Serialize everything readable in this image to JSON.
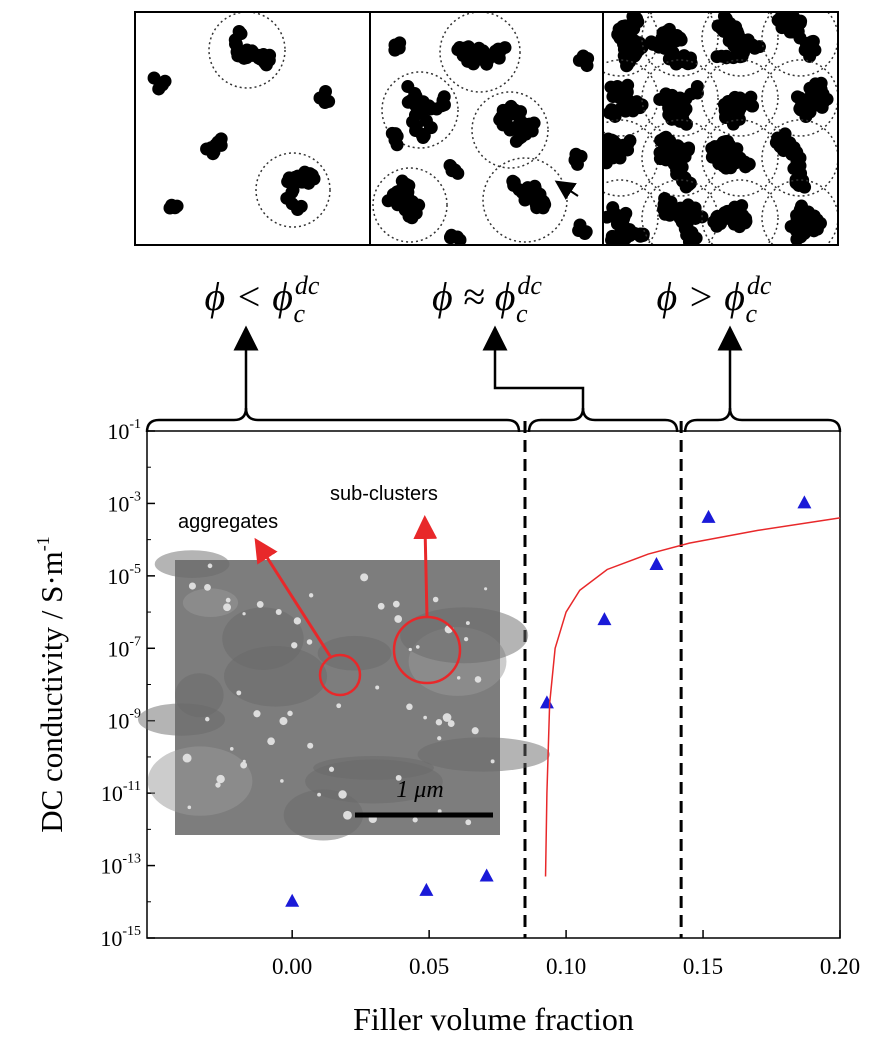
{
  "chart_data": {
    "type": "scatter",
    "xlabel": "Filler volume fraction",
    "ylabel": "DC conductivity / S·m",
    "ylabel_sup": "-1",
    "xlim": [
      -0.053,
      0.2
    ],
    "ylim": [
      1e-15,
      0.1
    ],
    "log_y": true,
    "xticks": [
      {
        "value": 0,
        "label": "0.00"
      },
      0.05,
      {
        "value": 0.1,
        "label": "0.10"
      },
      0.15,
      {
        "value": 0.2,
        "label": "0.20"
      }
    ],
    "yticks": [
      {
        "value": 0.1,
        "label": "10",
        "sup": "-1"
      },
      {
        "value": 0.001,
        "label": "10",
        "sup": "-3"
      },
      {
        "value": 1e-05,
        "label": "10",
        "sup": "-5"
      },
      {
        "value": 1e-07,
        "label": "10",
        "sup": "-7"
      },
      {
        "value": 1e-09,
        "label": "10",
        "sup": "-9"
      },
      {
        "value": 1e-11,
        "label": "10",
        "sup": "-11"
      },
      {
        "value": 1e-13,
        "label": "10",
        "sup": "-13"
      },
      {
        "value": 1e-15,
        "label": "10",
        "sup": "-15"
      }
    ],
    "series": [
      {
        "color": "#1a1ad8",
        "x": [
          0.0,
          0.049,
          0.071,
          0.093,
          0.114,
          0.133,
          0.152,
          0.187
        ],
        "values": [
          1e-14,
          2e-14,
          5e-14,
          3e-09,
          6e-07,
          2e-05,
          0.0004,
          0.001
        ]
      },
      {
        "color": "#e8282a",
        "line": true,
        "x": [
          0.0925,
          0.093,
          0.094,
          0.096,
          0.1,
          0.105,
          0.115,
          0.13,
          0.145,
          0.17,
          0.2
        ],
        "values": [
          5e-14,
          1e-11,
          3e-09,
          1e-07,
          1e-06,
          4e-06,
          1.5e-05,
          4e-05,
          8e-05,
          0.00018,
          0.0004
        ]
      }
    ],
    "thresholds": [
      0.085,
      0.142
    ],
    "regime_labels": [
      {
        "text": "ϕ < ϕ",
        "sub": "c",
        "sup": "dc"
      },
      {
        "text": "ϕ ≈ ϕ",
        "sub": "c",
        "sup": "dc"
      },
      {
        "text": "ϕ > ϕ",
        "sub": "c",
        "sup": "dc"
      }
    ],
    "annotations": {
      "aggregates": "aggregates",
      "sub_clusters": "sub-clusters",
      "scale_bar": "1 μm"
    }
  }
}
